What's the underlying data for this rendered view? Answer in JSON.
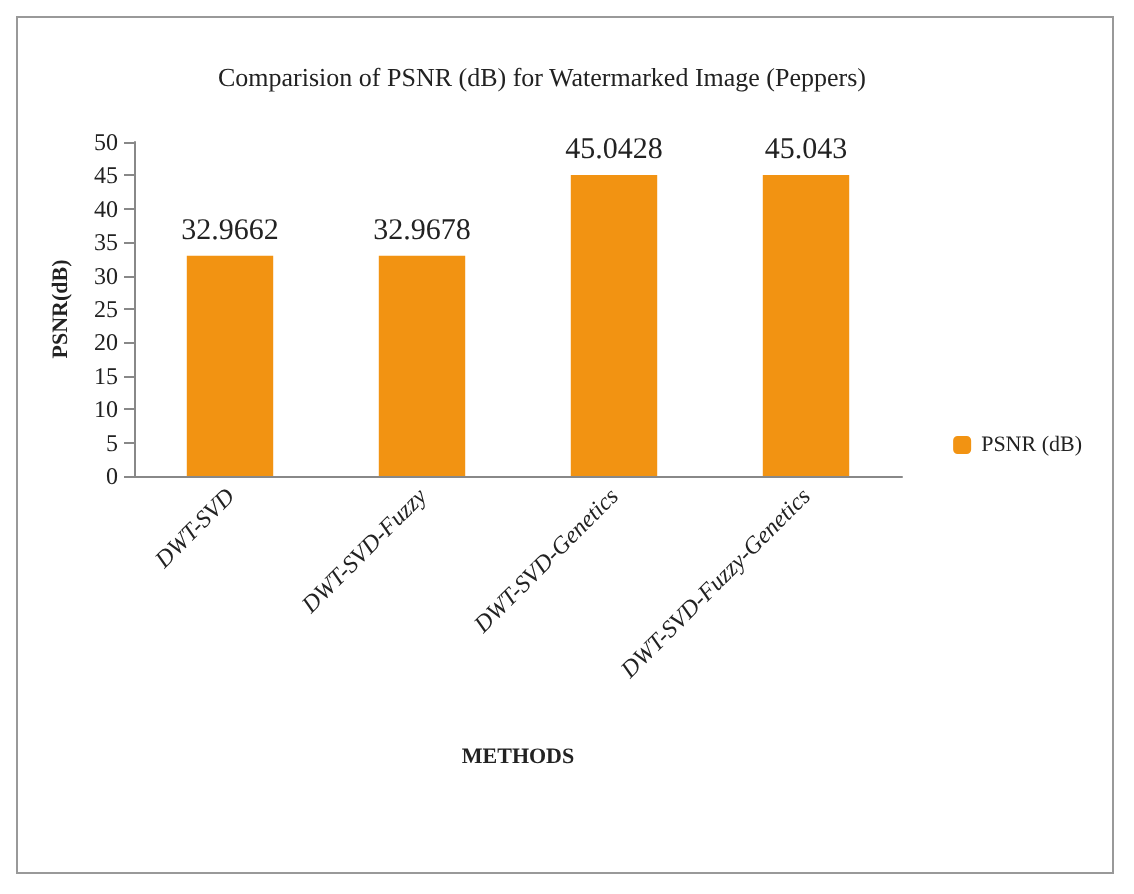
{
  "chart_data": {
    "type": "bar",
    "title": "Comparision of PSNR (dB) for Watermarked Image (Peppers)",
    "xlabel": "METHODS",
    "ylabel": "PSNR(dB)",
    "categories": [
      "DWT-SVD",
      "DWT-SVD-Fuzzy",
      "DWT-SVD-Genetics",
      "DWT-SVD-Fuzzy-Genetics"
    ],
    "series": [
      {
        "name": "PSNR (dB)",
        "color": "#f29312",
        "values": [
          32.9662,
          32.9678,
          45.0428,
          45.043
        ]
      }
    ],
    "ylim": [
      0,
      50
    ],
    "yticks": [
      0,
      5,
      10,
      15,
      20,
      25,
      30,
      35,
      40,
      45,
      50
    ],
    "data_labels": true,
    "grid": false,
    "legend": "right"
  }
}
